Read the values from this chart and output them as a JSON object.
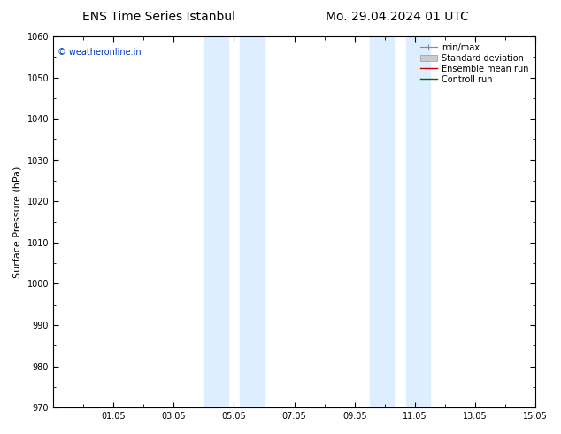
{
  "title_left": "ENS Time Series Istanbul",
  "title_right": "Mo. 29.04.2024 01 UTC",
  "ylabel": "Surface Pressure (hPa)",
  "ylim": [
    970,
    1060
  ],
  "yticks": [
    970,
    980,
    990,
    1000,
    1010,
    1020,
    1030,
    1040,
    1050,
    1060
  ],
  "xlim": [
    0,
    16
  ],
  "xtick_labels": [
    "01.05",
    "03.05",
    "05.05",
    "07.05",
    "09.05",
    "11.05",
    "13.05",
    "15.05"
  ],
  "xtick_positions": [
    2,
    4,
    6,
    8,
    10,
    12,
    14,
    16
  ],
  "shaded_bands": [
    {
      "xstart": 5.0,
      "xend": 5.8
    },
    {
      "xstart": 6.2,
      "xend": 7.0
    },
    {
      "xstart": 10.5,
      "xend": 11.3
    },
    {
      "xstart": 11.7,
      "xend": 12.5
    }
  ],
  "watermark": "© weatheronline.in",
  "watermark_color": "#0033cc",
  "background_color": "#ffffff",
  "plot_bg_color": "#ffffff",
  "shade_color": "#dceeff",
  "figsize": [
    6.34,
    4.9
  ],
  "dpi": 100,
  "title_fontsize": 10,
  "ylabel_fontsize": 8,
  "tick_labelsize": 7,
  "watermark_fontsize": 7,
  "legend_fontsize": 7
}
